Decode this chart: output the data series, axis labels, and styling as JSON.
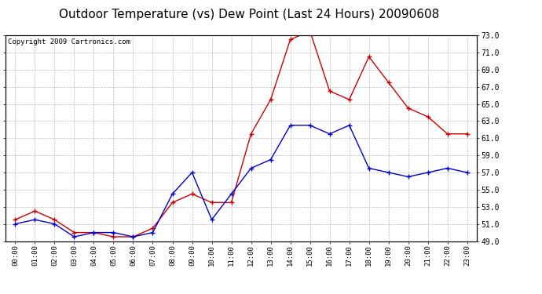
{
  "title": "Outdoor Temperature (vs) Dew Point (Last 24 Hours) 20090608",
  "copyright": "Copyright 2009 Cartronics.com",
  "x_labels": [
    "00:00",
    "01:00",
    "02:00",
    "03:00",
    "04:00",
    "05:00",
    "06:00",
    "07:00",
    "08:00",
    "09:00",
    "10:00",
    "11:00",
    "12:00",
    "13:00",
    "14:00",
    "15:00",
    "16:00",
    "17:00",
    "18:00",
    "19:00",
    "20:00",
    "21:00",
    "22:00",
    "23:00"
  ],
  "temp_red": [
    51.5,
    52.5,
    51.5,
    50.0,
    50.0,
    49.5,
    49.5,
    50.5,
    53.5,
    54.5,
    53.5,
    53.5,
    61.5,
    65.5,
    72.5,
    73.5,
    66.5,
    65.5,
    70.5,
    67.5,
    64.5,
    63.5,
    61.5,
    61.5
  ],
  "temp_blue": [
    51.0,
    51.5,
    51.0,
    49.5,
    50.0,
    50.0,
    49.5,
    50.0,
    54.5,
    57.0,
    51.5,
    54.5,
    57.5,
    58.5,
    62.5,
    62.5,
    61.5,
    62.5,
    57.5,
    57.0,
    56.5,
    57.0,
    57.5,
    57.0
  ],
  "ylim": [
    49.0,
    73.0
  ],
  "yticks": [
    49.0,
    51.0,
    53.0,
    55.0,
    57.0,
    59.0,
    61.0,
    63.0,
    65.0,
    67.0,
    69.0,
    71.0,
    73.0
  ],
  "bg_color": "#ffffff",
  "grid_color": "#aaaaaa",
  "red_color": "#cc0000",
  "blue_color": "#0000cc",
  "title_fontsize": 11,
  "copyright_fontsize": 6.5
}
